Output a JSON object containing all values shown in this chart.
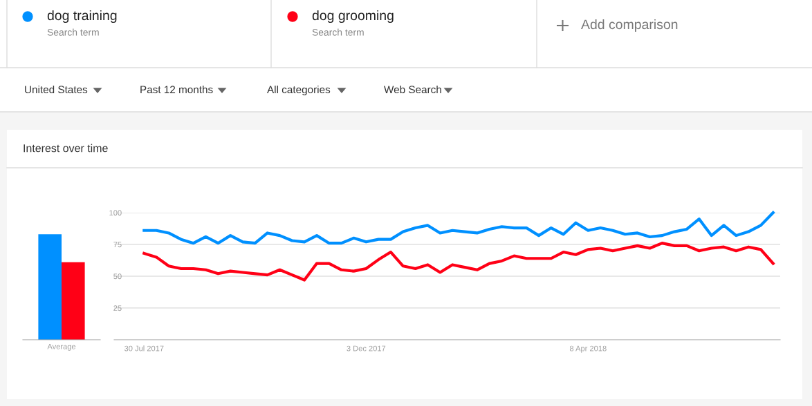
{
  "chart_data": [
    {
      "type": "bar",
      "title": "Interest over time",
      "categories": [
        "Average"
      ],
      "ylim": [
        0,
        100
      ],
      "tick_labels": "x",
      "series": [
        {
          "color": "#0090ff",
          "values": [
            83
          ]
        },
        {
          "color": "#ff0016",
          "values": [
            61
          ]
        }
      ]
    },
    {
      "type": "line",
      "legend": "top",
      "grid": "y",
      "x": [
        "2017-07-30",
        "2017-08-06",
        "2017-08-13",
        "2017-08-20",
        "2017-08-27",
        "2017-09-03",
        "2017-09-10",
        "2017-09-17",
        "2017-09-24",
        "2017-10-01",
        "2017-10-08",
        "2017-10-15",
        "2017-10-22",
        "2017-10-29",
        "2017-11-05",
        "2017-11-12",
        "2017-11-19",
        "2017-11-26",
        "2017-12-03",
        "2017-12-10",
        "2017-12-17",
        "2017-12-24",
        "2017-12-31",
        "2018-01-07",
        "2018-01-14",
        "2018-01-21",
        "2018-01-28",
        "2018-02-04",
        "2018-02-11",
        "2018-02-18",
        "2018-02-25",
        "2018-03-04",
        "2018-03-11",
        "2018-03-18",
        "2018-03-25",
        "2018-04-01",
        "2018-04-08",
        "2018-04-15",
        "2018-04-22",
        "2018-04-29",
        "2018-05-06",
        "2018-05-13",
        "2018-05-20",
        "2018-05-27",
        "2018-06-03",
        "2018-06-10",
        "2018-06-17",
        "2018-06-24",
        "2018-07-01",
        "2018-07-08",
        "2018-07-15",
        "2018-07-22"
      ],
      "xlim": [
        "2017-07-13",
        "2018-07-26"
      ],
      "xticks": [
        {
          "value": "2017-07-30",
          "label": "30 Jul 2017"
        },
        {
          "value": "2017-12-03",
          "label": "3 Dec 2017"
        },
        {
          "value": "2018-04-08",
          "label": "8 Apr 2018"
        }
      ],
      "ylim": [
        0,
        100
      ],
      "yticks": [
        25,
        50,
        75,
        100
      ],
      "annotations": [
        "Search term",
        "Search term",
        "Add comparison",
        "United States",
        "Past 12 months",
        "All categories",
        "Web Search"
      ],
      "series": [
        {
          "name": "dog training",
          "color": "#0090ff",
          "values": [
            86,
            86,
            84,
            79,
            76,
            81,
            76,
            82,
            77,
            76,
            84,
            82,
            78,
            77,
            82,
            76,
            76,
            80,
            77,
            79,
            79,
            85,
            88,
            90,
            84,
            86,
            85,
            84,
            87,
            89,
            88,
            88,
            82,
            88,
            83,
            92,
            86,
            88,
            86,
            83,
            84,
            81,
            82,
            85,
            87,
            95,
            82,
            90,
            82,
            85,
            90,
            100
          ]
        },
        {
          "name": "dog grooming",
          "color": "#ff0016",
          "values": [
            68,
            65,
            58,
            56,
            56,
            55,
            52,
            54,
            53,
            52,
            51,
            55,
            51,
            47,
            60,
            60,
            55,
            54,
            56,
            63,
            69,
            58,
            56,
            59,
            53,
            59,
            57,
            55,
            60,
            62,
            66,
            64,
            64,
            64,
            69,
            67,
            71,
            72,
            70,
            72,
            74,
            72,
            76,
            74,
            74,
            70,
            72,
            73,
            70,
            73,
            71,
            60
          ]
        }
      ]
    }
  ]
}
